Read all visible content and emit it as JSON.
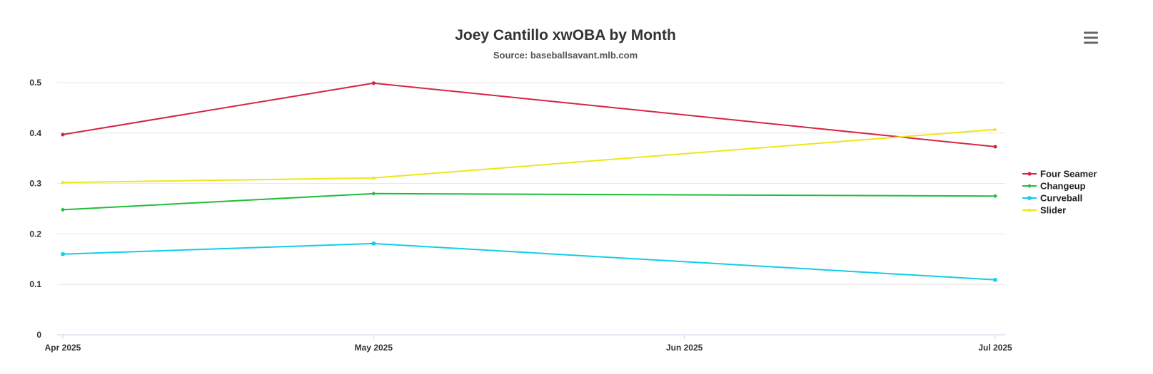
{
  "colors": {
    "background": "#ffffff",
    "grid": "#e6e6e6",
    "axis": "#ccd6eb",
    "menu_icon": "#666666"
  },
  "menu": {
    "icon": "hamburger-menu-icon"
  },
  "chart_data": {
    "type": "line",
    "title": "Joey Cantillo xwOBA by Month",
    "subtitle": "Source: baseballsavant.mlb.com",
    "xlabel": "",
    "ylabel": "",
    "categories": [
      "Apr 2025",
      "May 2025",
      "Jun 2025",
      "Jul 2025"
    ],
    "ylim": [
      0,
      0.5
    ],
    "y_ticks": [
      "0",
      "0.1",
      "0.2",
      "0.3",
      "0.4",
      "0.5"
    ],
    "grid": true,
    "legend_position": "right",
    "series": [
      {
        "name": "Four Seamer",
        "color": "#d62545",
        "marker": "circle",
        "points": [
          {
            "x": "Apr 2025",
            "y": 0.397
          },
          {
            "x": "May 2025",
            "y": 0.499
          },
          {
            "x": "Jul 2025",
            "y": 0.373
          }
        ]
      },
      {
        "name": "Changeup",
        "color": "#1fbe3a",
        "marker": "diamond",
        "points": [
          {
            "x": "Apr 2025",
            "y": 0.248
          },
          {
            "x": "May 2025",
            "y": 0.28
          },
          {
            "x": "Jul 2025",
            "y": 0.275
          }
        ]
      },
      {
        "name": "Curveball",
        "color": "#12cdea",
        "marker": "square",
        "points": [
          {
            "x": "Apr 2025",
            "y": 0.16
          },
          {
            "x": "May 2025",
            "y": 0.181
          },
          {
            "x": "Jul 2025",
            "y": 0.109
          }
        ]
      },
      {
        "name": "Slider",
        "color": "#ece719",
        "marker": "triangle",
        "points": [
          {
            "x": "Apr 2025",
            "y": 0.302
          },
          {
            "x": "May 2025",
            "y": 0.311
          },
          {
            "x": "Jul 2025",
            "y": 0.407
          }
        ]
      }
    ]
  }
}
